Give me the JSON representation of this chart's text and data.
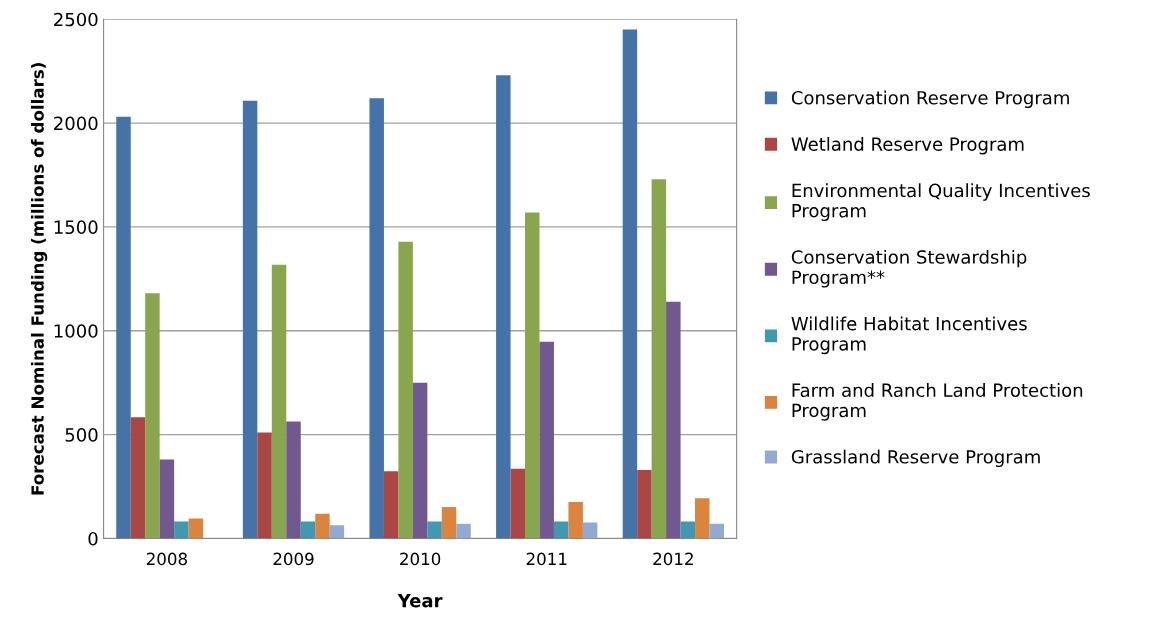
{
  "chart_data": {
    "type": "bar",
    "xlabel": "Year",
    "ylabel": "Forecast Nominal Funding (millions of dollars)",
    "categories": [
      "2008",
      "2009",
      "2010",
      "2011",
      "2012"
    ],
    "series": [
      {
        "name": "Conservation Reserve Program",
        "color": "#4572a7",
        "values": [
          2030,
          2107,
          2120,
          2230,
          2450
        ]
      },
      {
        "name": "Wetland Reserve Program",
        "color": "#aa4643",
        "values": [
          583,
          510,
          323,
          335,
          329
        ]
      },
      {
        "name": "Environmental Quality Incentives\nProgram",
        "color": "#89a54e",
        "values": [
          1181,
          1318,
          1429,
          1570,
          1730
        ]
      },
      {
        "name": "Conservation Stewardship\nProgram**",
        "color": "#71588f",
        "values": [
          380,
          563,
          750,
          947,
          1140
        ]
      },
      {
        "name": "Wildlife Habitat Incentives\nProgram",
        "color": "#4198af",
        "values": [
          82,
          82,
          82,
          82,
          82
        ]
      },
      {
        "name": "Farm and Ranch Land Protection\nProgram",
        "color": "#db843d",
        "values": [
          96,
          119,
          151,
          175,
          194
        ]
      },
      {
        "name": "Grassland Reserve Program",
        "color": "#93a9cf",
        "values": [
          null,
          64,
          71,
          77,
          71
        ]
      }
    ],
    "ylim": [
      0,
      2500
    ],
    "yticks": [
      0,
      500,
      1000,
      1500,
      2000,
      2500
    ],
    "grid": "y",
    "legend": "right"
  }
}
